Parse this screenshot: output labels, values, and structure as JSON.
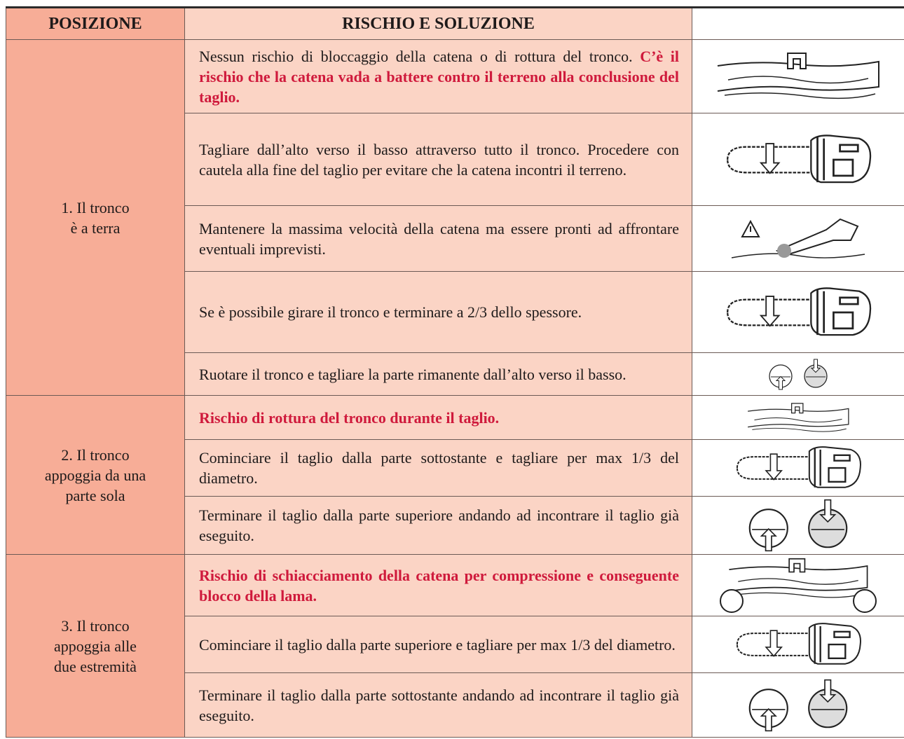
{
  "table": {
    "headers": [
      "POSIZIONE",
      "RISCHIO E SOLUZIONE"
    ],
    "groups": [
      {
        "position": "1. Il tronco\nè a terra",
        "rows": [
          {
            "text": "Nessun rischio di bloccaggio della catena o di rottura del tronco.",
            "warning": "C’è il rischio che la catena vada a battere contro il terreno alla conclusione del taglio."
          },
          {
            "text": "Tagliare dall’alto verso il basso attraverso tutto il tronco. Procedere con cautela alla fine del taglio per evitare che la catena incontri il terreno."
          },
          {
            "text": "Mantenere la massima velocità della catena ma essere pronti ad affrontare eventuali imprevisti."
          },
          {
            "text": "Se è possibile girare il tronco e terminare a 2/3 dello spessore."
          },
          {
            "text": "Ruotare il tronco e tagliare la parte rimanente dall’alto verso il basso."
          }
        ]
      },
      {
        "position": "2. Il tronco\nappoggia da una\nparte sola",
        "rows": [
          {
            "warning": "Rischio di rottura del tronco durante il taglio."
          },
          {
            "text": "Cominciare il taglio dalla parte sottostante e tagliare per max 1/3 del diametro."
          },
          {
            "text": "Terminare il taglio dalla parte superiore andando ad incontrare il taglio già eseguito."
          }
        ]
      },
      {
        "position": "3. Il tronco\nappoggia alle\ndue estremità",
        "rows": [
          {
            "warning": "Rischio di schiacciamento della catena per compressione e conseguente blocco della lama."
          },
          {
            "text": "Cominciare il taglio dalla parte superiore e tagliare per max 1/3 del diametro."
          },
          {
            "text": "Terminare il taglio dalla parte sottostante andando ad incontrare il taglio già eseguito."
          }
        ]
      }
    ]
  }
}
